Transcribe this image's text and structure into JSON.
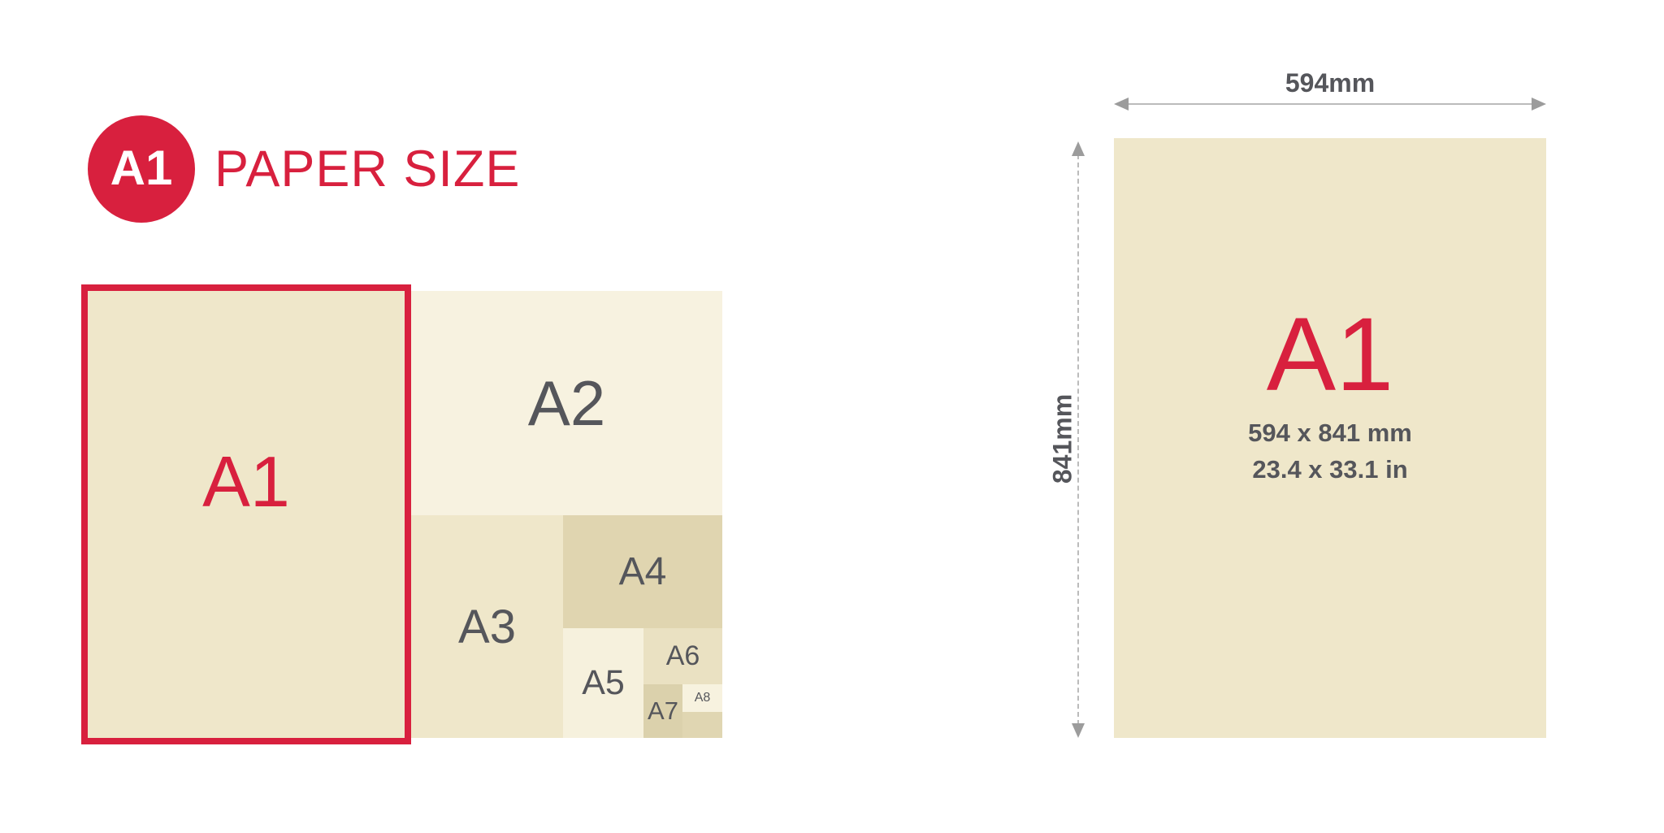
{
  "header": {
    "badge_label": "A1",
    "title": "PAPER SIZE"
  },
  "nested_diagram": {
    "labels": {
      "a1": "A1",
      "a2": "A2",
      "a3": "A3",
      "a4": "A4",
      "a5": "A5",
      "a6": "A6",
      "a7": "A7",
      "a8": "A8"
    }
  },
  "detail": {
    "title": "A1",
    "size_mm": "594 x 841 mm",
    "size_in": "23.4 x 33.1 in",
    "width_label": "594mm",
    "height_label": "841mm"
  },
  "colors": {
    "accent_red": "#D8203E",
    "label_gray": "#55565B",
    "cream_base": "#EFE7CA",
    "cream_a2": "#F7F2E0",
    "cream_a5": "#F6F1DD",
    "cream_a8": "#F7F2DF",
    "tan_a4": "#E0D5B0",
    "tan_a6": "#EAE1C2",
    "tan_a7": "#DBD1AC",
    "tan_remainder": "#E0D6B2",
    "dimension_line_gray": "#BBBBBB",
    "arrowhead_gray": "#9C9C9C",
    "badge_text_white": "#FFFFFF"
  }
}
